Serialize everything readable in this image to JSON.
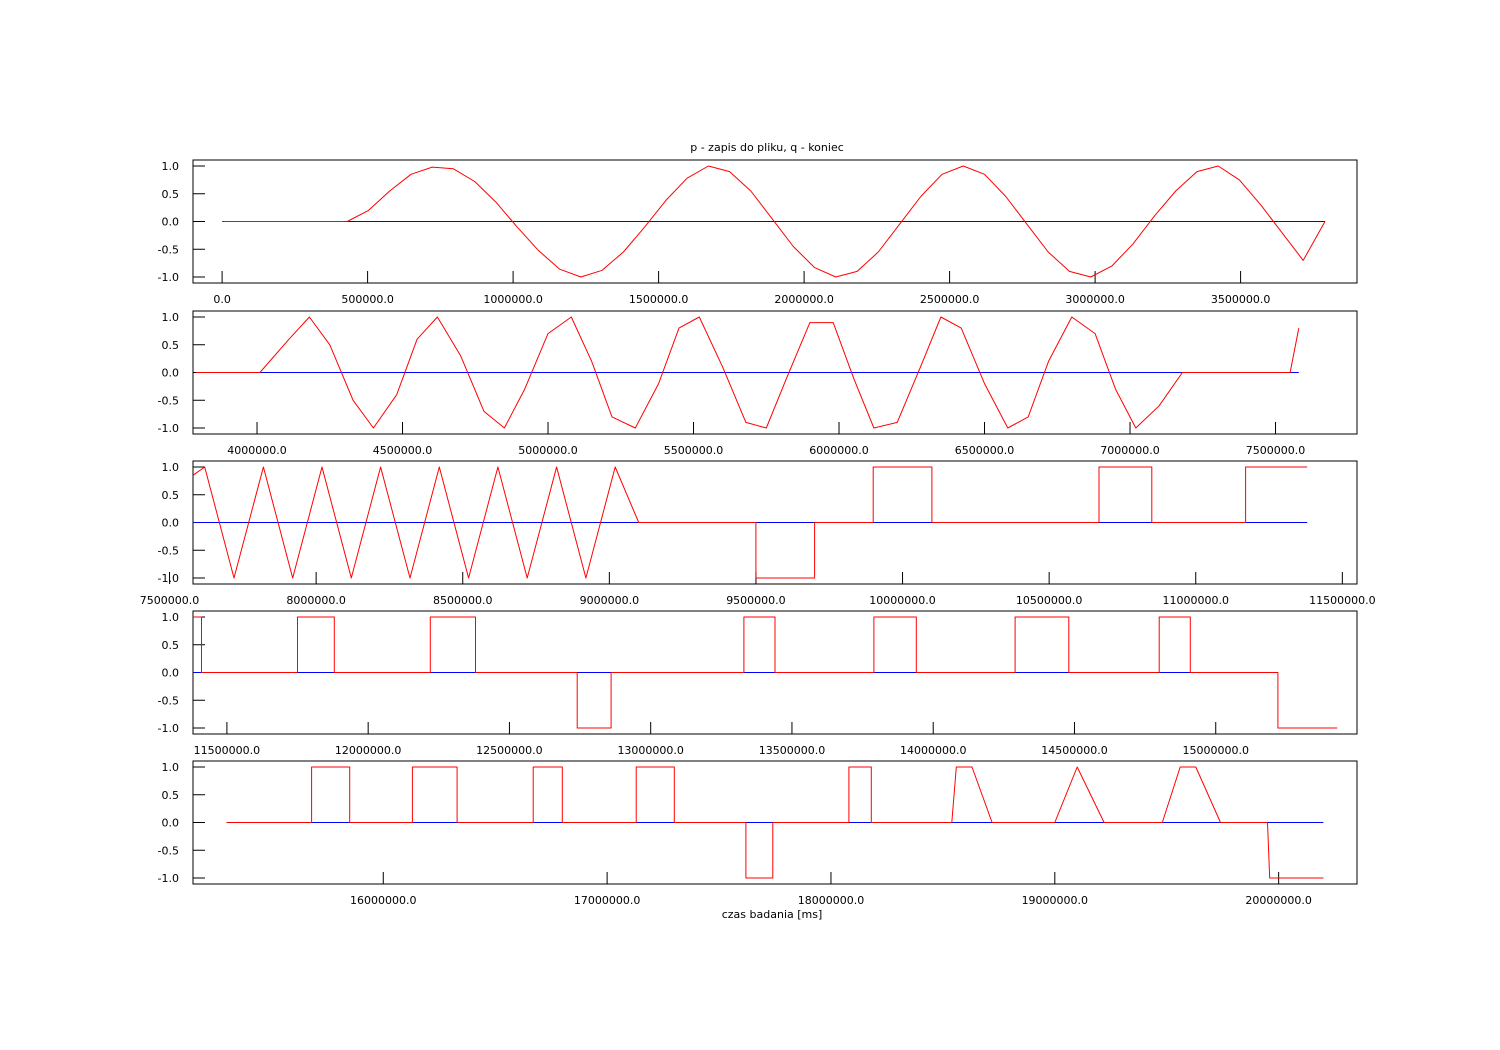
{
  "title": "p - zapis do pliku, q - koniec",
  "chart_data": [
    {
      "type": "line",
      "xlim": [
        -100000,
        3900000
      ],
      "ylim": [
        -1.0,
        1.0
      ],
      "x_ticks": [
        {
          "v": 0,
          "label": "0.0"
        },
        {
          "v": 500000,
          "label": "500000.0"
        },
        {
          "v": 1000000,
          "label": "1000000.0"
        },
        {
          "v": 1500000,
          "label": "1500000.0"
        },
        {
          "v": 2000000,
          "label": "2000000.0"
        },
        {
          "v": 2500000,
          "label": "2500000.0"
        },
        {
          "v": 3000000,
          "label": "3000000.0"
        },
        {
          "v": 3500000,
          "label": "3500000.0"
        }
      ],
      "y_ticks": [
        {
          "v": 1,
          "label": "1.0"
        },
        {
          "v": 0.5,
          "label": "0.5"
        },
        {
          "v": 0,
          "label": "0.0"
        },
        {
          "v": -0.5,
          "label": "-0.5"
        },
        {
          "v": -1,
          "label": "-1.0"
        }
      ],
      "series": [
        {
          "color": "#0000ff",
          "x": [
            0,
            3790000
          ],
          "y": [
            0,
            0
          ]
        },
        {
          "color": "#ff0000",
          "x": [
            0,
            430000,
            503000,
            576000,
            649000,
            722000,
            795000,
            868000,
            941000,
            1014000,
            1087000,
            1160000,
            1233000,
            1306000,
            1379000,
            1452000,
            1525000,
            1598000,
            1671000,
            1744000,
            1817000,
            1890000,
            1963000,
            2036000,
            2109000,
            2182000,
            2255000,
            2328000,
            2401000,
            2474000,
            2547000,
            2620000,
            2693000,
            2766000,
            2839000,
            2912000,
            2985000,
            3058000,
            3131000,
            3204000,
            3277000,
            3350000,
            3423000,
            3496000,
            3569000,
            3642000,
            3715000,
            3790000
          ],
          "y": [
            0,
            0,
            0.2,
            0.55,
            0.85,
            0.98,
            0.95,
            0.72,
            0.35,
            -0.1,
            -0.52,
            -0.86,
            -1.0,
            -0.88,
            -0.55,
            -0.1,
            0.38,
            0.78,
            1.0,
            0.9,
            0.55,
            0.05,
            -0.45,
            -0.83,
            -1.0,
            -0.9,
            -0.55,
            -0.05,
            0.45,
            0.85,
            1.0,
            0.85,
            0.45,
            -0.05,
            -0.55,
            -0.9,
            -1.0,
            -0.8,
            -0.4,
            0.1,
            0.55,
            0.9,
            1.0,
            0.75,
            0.3,
            -0.2,
            -0.7,
            0
          ]
        }
      ]
    },
    {
      "type": "line",
      "xlim": [
        3780000,
        7780000
      ],
      "ylim": [
        -1.0,
        1.0
      ],
      "x_ticks": [
        {
          "v": 4000000,
          "label": "4000000.0"
        },
        {
          "v": 4500000,
          "label": "4500000.0"
        },
        {
          "v": 5000000,
          "label": "5000000.0"
        },
        {
          "v": 5500000,
          "label": "5500000.0"
        },
        {
          "v": 6000000,
          "label": "6000000.0"
        },
        {
          "v": 6500000,
          "label": "6500000.0"
        },
        {
          "v": 7000000,
          "label": "7000000.0"
        },
        {
          "v": 7500000,
          "label": "7500000.0"
        }
      ],
      "y_ticks": [
        {
          "v": 1,
          "label": "1.0"
        },
        {
          "v": 0.5,
          "label": "0.5"
        },
        {
          "v": 0,
          "label": "0.0"
        },
        {
          "v": -0.5,
          "label": "-0.5"
        },
        {
          "v": -1,
          "label": "-1.0"
        }
      ],
      "series": [
        {
          "color": "#0000ff",
          "x": [
            3790000,
            7580000
          ],
          "y": [
            0,
            0
          ]
        },
        {
          "color": "#ff0000",
          "x": [
            3790000,
            4010000,
            4110000,
            4180000,
            4250000,
            4330000,
            4400000,
            4480000,
            4550000,
            4620000,
            4700000,
            4780000,
            4850000,
            4920000,
            5000000,
            5080000,
            5150000,
            5220000,
            5300000,
            5380000,
            5450000,
            5520000,
            5600000,
            5680000,
            5750000,
            5820000,
            5900000,
            5980000,
            6050000,
            6120000,
            6200000,
            6280000,
            6350000,
            6420000,
            6500000,
            6580000,
            6650000,
            6720000,
            6800000,
            6880000,
            6950000,
            7020000,
            7100000,
            7180000,
            7220000,
            7550000,
            7580000
          ],
          "y": [
            0,
            0,
            0.6,
            1.0,
            0.5,
            -0.5,
            -1.0,
            -0.4,
            0.6,
            1.0,
            0.3,
            -0.7,
            -1.0,
            -0.3,
            0.7,
            1.0,
            0.2,
            -0.8,
            -1.0,
            -0.2,
            0.8,
            1.0,
            0.1,
            -0.9,
            -1.0,
            -0.1,
            0.9,
            0.9,
            -0.1,
            -1.0,
            -0.9,
            0.1,
            1.0,
            0.8,
            -0.2,
            -1.0,
            -0.8,
            0.2,
            1.0,
            0.7,
            -0.3,
            -1.0,
            -0.6,
            0,
            0,
            0,
            0.8
          ]
        }
      ]
    },
    {
      "type": "line",
      "xlim": [
        7580000,
        11550000
      ],
      "ylim": [
        -1.0,
        1.0
      ],
      "x_ticks": [
        {
          "v": 7500000,
          "label": "7500000.0"
        },
        {
          "v": 8000000,
          "label": "8000000.0"
        },
        {
          "v": 8500000,
          "label": "8500000.0"
        },
        {
          "v": 9000000,
          "label": "9000000.0"
        },
        {
          "v": 9500000,
          "label": "9500000.0"
        },
        {
          "v": 10000000,
          "label": "10000000.0"
        },
        {
          "v": 10500000,
          "label": "10500000.0"
        },
        {
          "v": 11000000,
          "label": "11000000.0"
        },
        {
          "v": 11500000,
          "label": "11500000.0"
        }
      ],
      "y_ticks": [
        {
          "v": 1,
          "label": "1.0"
        },
        {
          "v": 0.5,
          "label": "0.5"
        },
        {
          "v": 0,
          "label": "0.0"
        },
        {
          "v": -0.5,
          "label": "-0.5"
        },
        {
          "v": -1,
          "label": "-1.0"
        }
      ],
      "series": [
        {
          "color": "#0000ff",
          "x": [
            7580000,
            11380000
          ],
          "y": [
            0,
            0
          ]
        },
        {
          "color": "#ff0000",
          "x": [
            7580000,
            7620000,
            7720000,
            7820000,
            7920000,
            8020000,
            8120000,
            8220000,
            8320000,
            8420000,
            8520000,
            8620000,
            8720000,
            8820000,
            8920000,
            9020000,
            9100000,
            9500000,
            9500000,
            9700000,
            9700000,
            9900000,
            9900000,
            10100000,
            10100000,
            10670000,
            10670000,
            10850000,
            10850000,
            11170000,
            11170000,
            11380000
          ],
          "y": [
            0.85,
            1.0,
            -1.0,
            1.0,
            -1.0,
            1.0,
            -1.0,
            1.0,
            -1.0,
            1.0,
            -1.0,
            1.0,
            -1.0,
            1.0,
            -1.0,
            1.0,
            0,
            0,
            -1.0,
            -1.0,
            0,
            0,
            1.0,
            1.0,
            0,
            0,
            1.0,
            1.0,
            0,
            0,
            1.0,
            1.0
          ]
        }
      ]
    },
    {
      "type": "line",
      "xlim": [
        11380000,
        15500000
      ],
      "ylim": [
        -1.0,
        1.0
      ],
      "x_ticks": [
        {
          "v": 11500000,
          "label": "11500000.0"
        },
        {
          "v": 12000000,
          "label": "12000000.0"
        },
        {
          "v": 12500000,
          "label": "12500000.0"
        },
        {
          "v": 13000000,
          "label": "13000000.0"
        },
        {
          "v": 13500000,
          "label": "13500000.0"
        },
        {
          "v": 14000000,
          "label": "14000000.0"
        },
        {
          "v": 14500000,
          "label": "14500000.0"
        },
        {
          "v": 15000000,
          "label": "15000000.0"
        }
      ],
      "y_ticks": [
        {
          "v": 1,
          "label": "1.0"
        },
        {
          "v": 0.5,
          "label": "0.5"
        },
        {
          "v": 0,
          "label": "0.0"
        },
        {
          "v": -0.5,
          "label": "-0.5"
        },
        {
          "v": -1,
          "label": "-1.0"
        }
      ],
      "series": [
        {
          "color": "#0000ff",
          "x": [
            11380000,
            15170000
          ],
          "y": [
            0,
            0
          ]
        },
        {
          "color": "#ff0000",
          "x": [
            11380000,
            11410000,
            11410000,
            11750000,
            11750000,
            11880000,
            11880000,
            12220000,
            12220000,
            12380000,
            12380000,
            12740000,
            12740000,
            12860000,
            12860000,
            13330000,
            13330000,
            13440000,
            13440000,
            13790000,
            13790000,
            13940000,
            13940000,
            14290000,
            14290000,
            14480000,
            14480000,
            14800000,
            14800000,
            14910000,
            14910000,
            15220000,
            15220000,
            15430000
          ],
          "y": [
            1.0,
            1.0,
            0,
            0,
            1.0,
            1.0,
            0,
            0,
            1.0,
            1.0,
            0,
            0,
            -1.0,
            -1.0,
            0,
            0,
            1.0,
            1.0,
            0,
            0,
            1.0,
            1.0,
            0,
            0,
            1.0,
            1.0,
            0,
            0,
            1.0,
            1.0,
            0,
            0,
            -1.0,
            -1.0
          ]
        }
      ]
    },
    {
      "type": "line",
      "xlim": [
        15150000,
        20350000
      ],
      "ylim": [
        -1.0,
        1.0
      ],
      "x_ticks": [
        {
          "v": 16000000,
          "label": "16000000.0"
        },
        {
          "v": 17000000,
          "label": "17000000.0"
        },
        {
          "v": 18000000,
          "label": "18000000.0"
        },
        {
          "v": 19000000,
          "label": "19000000.0"
        },
        {
          "v": 20000000,
          "label": "20000000.0"
        }
      ],
      "y_ticks": [
        {
          "v": 1,
          "label": "1.0"
        },
        {
          "v": 0.5,
          "label": "0.5"
        },
        {
          "v": 0,
          "label": "0.0"
        },
        {
          "v": -0.5,
          "label": "-0.5"
        },
        {
          "v": -1,
          "label": "-1.0"
        }
      ],
      "xlabel": "czas badania [ms]",
      "series": [
        {
          "color": "#0000ff",
          "x": [
            15300000,
            20200000
          ],
          "y": [
            0,
            0
          ]
        },
        {
          "color": "#ff0000",
          "x": [
            15300000,
            15680000,
            15680000,
            15850000,
            15850000,
            16130000,
            16130000,
            16330000,
            16330000,
            16670000,
            16670000,
            16800000,
            16800000,
            17130000,
            17130000,
            17300000,
            17300000,
            17620000,
            17620000,
            17740000,
            17740000,
            18080000,
            18080000,
            18180000,
            18180000,
            18540000,
            18560000,
            18630000,
            18720000,
            19000000,
            19100000,
            19220000,
            19480000,
            19560000,
            19630000,
            19740000,
            19950000,
            19960000,
            20200000
          ],
          "y": [
            0,
            0,
            1.0,
            1.0,
            0,
            0,
            1.0,
            1.0,
            0,
            0,
            1.0,
            1.0,
            0,
            0,
            1.0,
            1.0,
            0,
            0,
            -1.0,
            -1.0,
            0,
            0,
            1.0,
            1.0,
            0,
            0,
            1.0,
            1.0,
            0,
            0,
            1.0,
            0,
            0,
            1.0,
            1.0,
            0,
            0,
            -1.0,
            -1.0
          ]
        }
      ]
    }
  ]
}
